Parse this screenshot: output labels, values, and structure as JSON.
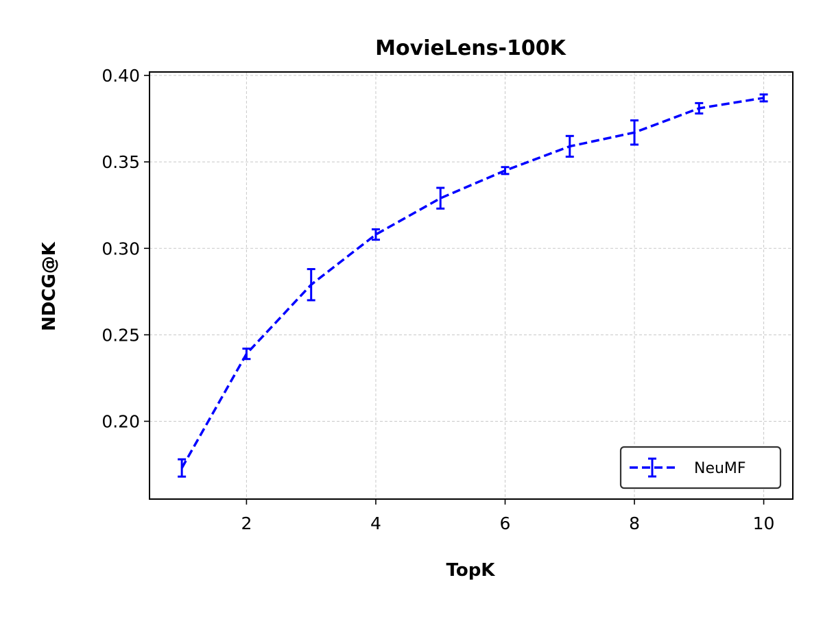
{
  "chart_data": {
    "type": "line",
    "title": "MovieLens-100K",
    "xlabel": "TopK",
    "ylabel": "NDCG@K",
    "xlim": [
      0.5,
      10.45
    ],
    "ylim": [
      0.155,
      0.402
    ],
    "x_ticks": [
      2,
      4,
      6,
      8,
      10
    ],
    "x_tick_labels": [
      "2",
      "4",
      "6",
      "8",
      "10"
    ],
    "y_ticks": [
      0.2,
      0.25,
      0.3,
      0.35,
      0.4
    ],
    "y_tick_labels": [
      "0.20",
      "0.25",
      "0.30",
      "0.35",
      "0.40"
    ],
    "grid": true,
    "legend_position": "lower-right",
    "x": [
      1,
      2,
      3,
      4,
      5,
      6,
      7,
      8,
      9,
      10
    ],
    "series": [
      {
        "name": "NeuMF",
        "color": "#0000ff",
        "line_style": "dashed",
        "values": [
          0.173,
          0.239,
          0.279,
          0.308,
          0.329,
          0.345,
          0.359,
          0.367,
          0.381,
          0.387
        ],
        "errors": [
          0.005,
          0.003,
          0.009,
          0.003,
          0.006,
          0.002,
          0.006,
          0.007,
          0.003,
          0.002
        ]
      }
    ]
  }
}
